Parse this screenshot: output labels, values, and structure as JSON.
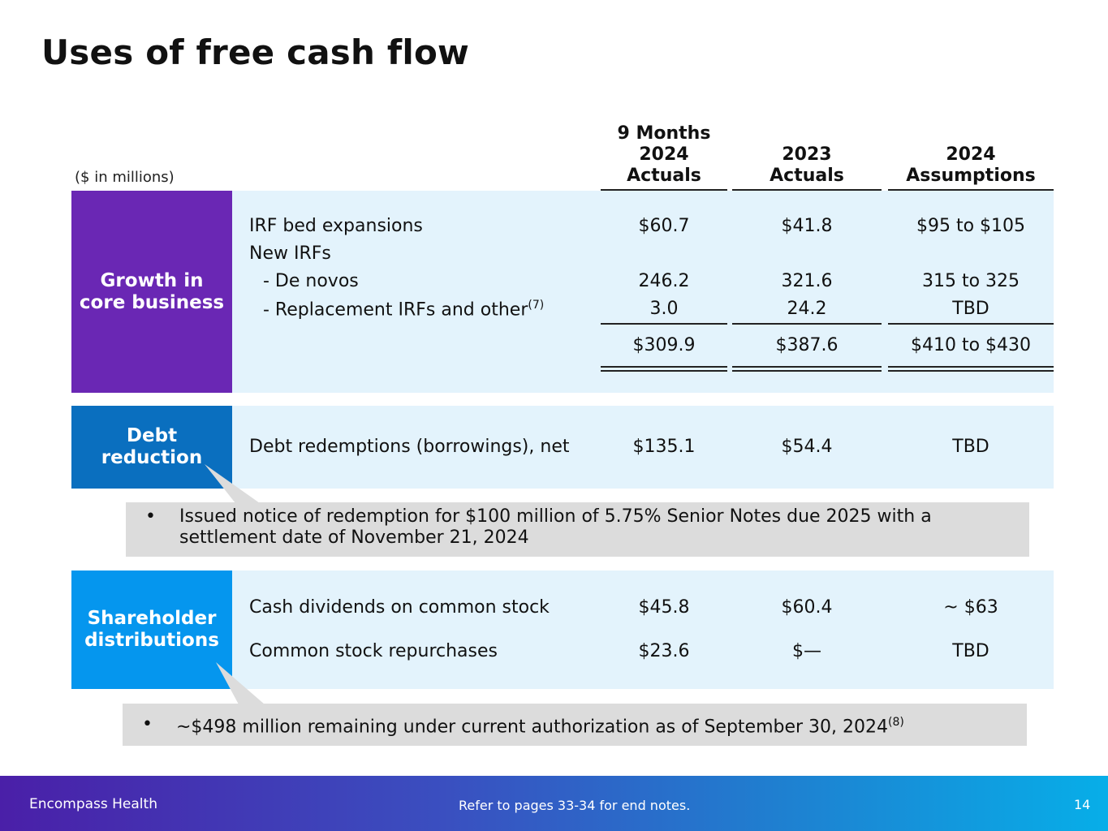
{
  "title": "Uses of free cash flow",
  "units": "($ in millions)",
  "columns": {
    "c1": [
      "9 Months",
      "2024",
      "Actuals"
    ],
    "c2": [
      "2023",
      "Actuals"
    ],
    "c3": [
      "2024",
      "Assumptions"
    ]
  },
  "growth": {
    "label_line1": "Growth in",
    "label_line2": "core business",
    "rows": [
      {
        "label": "IRF bed expansions",
        "v1": "$60.7",
        "v2": "$41.8",
        "v3": "$95 to $105"
      },
      {
        "label": "New IRFs",
        "v1": "",
        "v2": "",
        "v3": ""
      },
      {
        "label": "- De novos",
        "v1": "246.2",
        "v2": "321.6",
        "v3": "315 to 325"
      },
      {
        "label": "- Replacement IRFs and other",
        "sup": "(7)",
        "v1": "3.0",
        "v2": "24.2",
        "v3": "TBD"
      }
    ],
    "total": {
      "v1": "$309.9",
      "v2": "$387.6",
      "v3": "$410 to $430"
    }
  },
  "debt": {
    "label_line1": "Debt",
    "label_line2": "reduction",
    "row": {
      "label": "Debt redemptions (borrowings), net",
      "v1": "$135.1",
      "v2": "$54.4",
      "v3": "TBD"
    },
    "note_line1": "Issued notice of redemption for $100 million of 5.75% Senior Notes due 2025 with a",
    "note_line2": "settlement date of November 21, 2024"
  },
  "shareholder": {
    "label_line1": "Shareholder",
    "label_line2": "distributions",
    "rows": [
      {
        "label": "Cash dividends on common stock",
        "v1": "$45.8",
        "v2": "$60.4",
        "v3": "~ $63"
      },
      {
        "label": "Common stock repurchases",
        "v1": "$23.6",
        "v2": "$—",
        "v3": "TBD"
      }
    ],
    "note": "~$498 million remaining under current authorization as of September 30, 2024",
    "note_sup": "(8)"
  },
  "bullet": "•",
  "footer": {
    "company": "Encompass Health",
    "endnotes": "Refer to pages 33-34 for end notes.",
    "page": "14"
  },
  "colors": {
    "purple": "#6a27b4",
    "debt_blue": "#0a6fbf",
    "share_blue": "#0596ee",
    "panel": "#e3f3fc",
    "note": "#dcdcdc"
  }
}
